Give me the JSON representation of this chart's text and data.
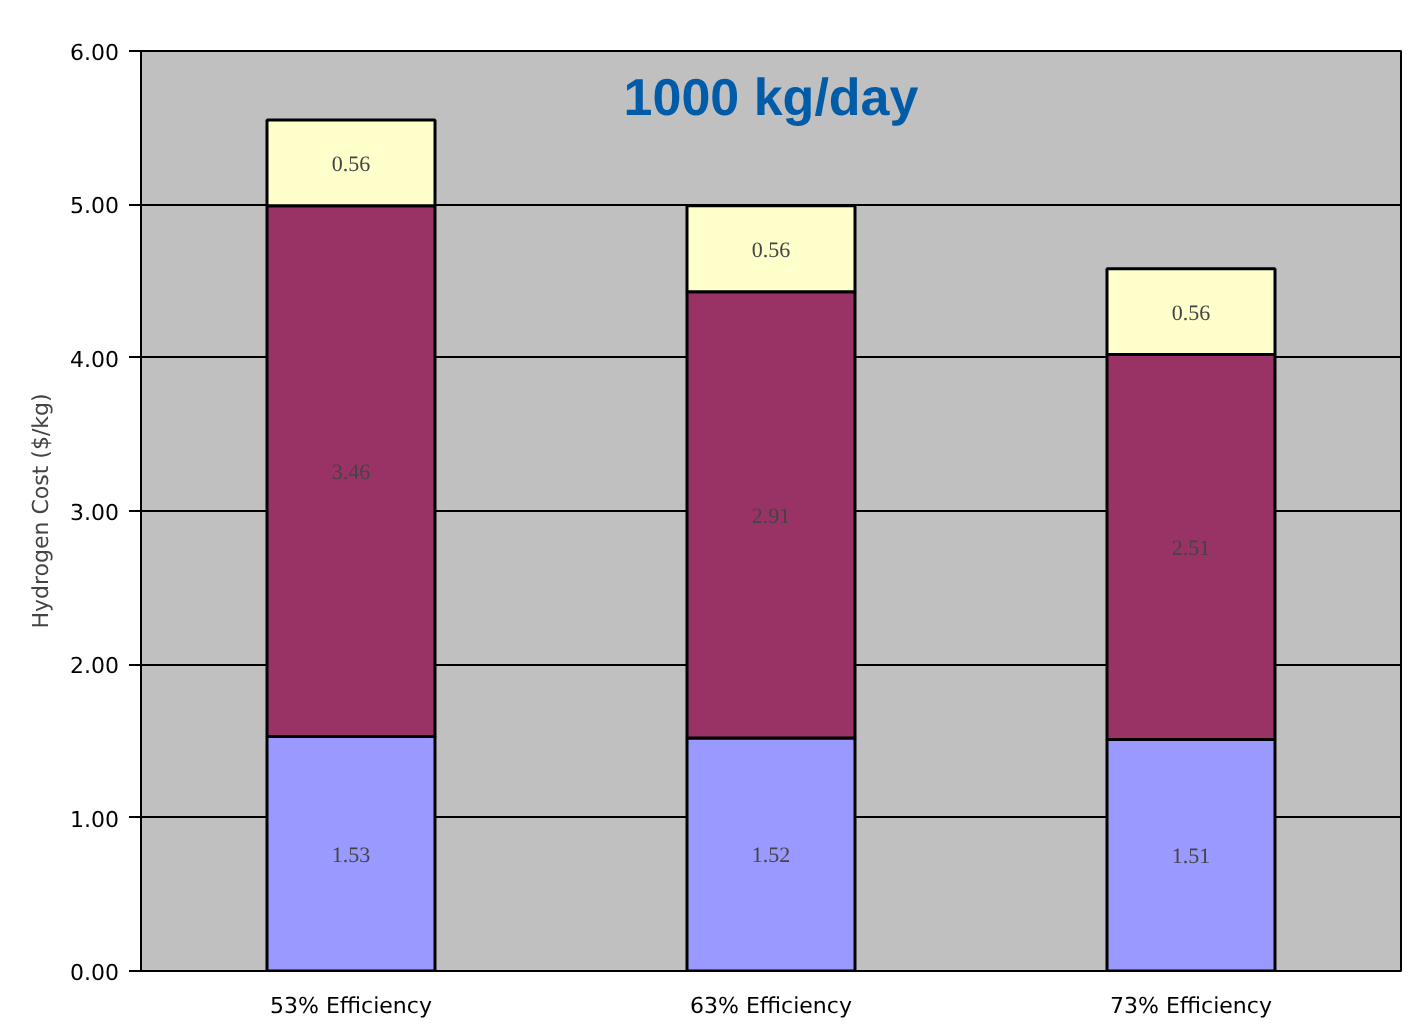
{
  "chart_data": {
    "type": "bar",
    "title": "1000 kg/day",
    "ylabel": "Hydrogen Cost ($/kg)",
    "categories": [
      "53% Efficiency",
      "63% Efficiency",
      "73% Efficiency"
    ],
    "stacked": true,
    "data_labels": true,
    "grid": "y",
    "series": [
      {
        "color": "#9999ff",
        "values": [
          1.53,
          1.52,
          1.51
        ]
      },
      {
        "color": "#993366",
        "values": [
          3.46,
          2.91,
          2.51
        ]
      },
      {
        "color": "#ffffcc",
        "values": [
          0.56,
          0.56,
          0.56
        ]
      }
    ],
    "ylim": [
      0,
      6
    ],
    "yticks": [
      {
        "value": 0,
        "label": "0.00"
      },
      {
        "value": 1,
        "label": "1.00"
      },
      {
        "value": 2,
        "label": "2.00"
      },
      {
        "value": 3,
        "label": "3.00"
      },
      {
        "value": 4,
        "label": "4.00"
      },
      {
        "value": 5,
        "label": "5.00"
      },
      {
        "value": 6,
        "label": "6.00"
      }
    ]
  }
}
